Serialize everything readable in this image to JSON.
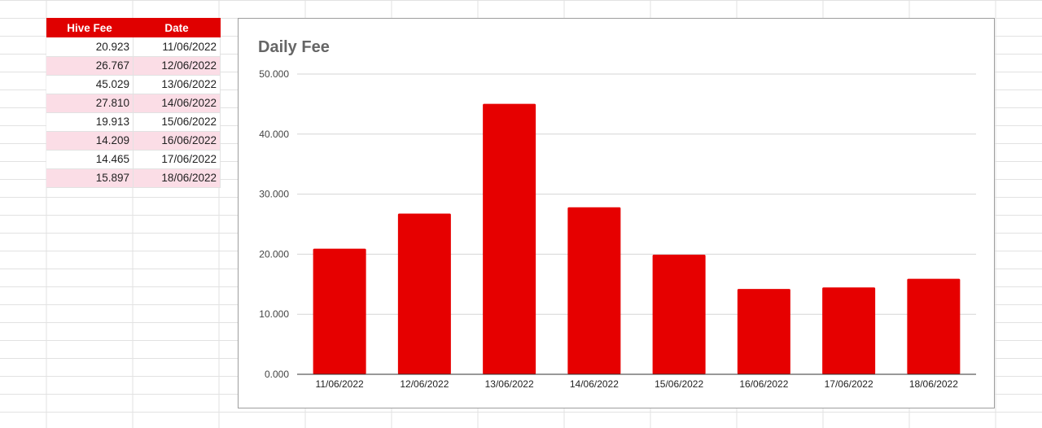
{
  "table": {
    "headers": [
      "Hive Fee",
      "Date"
    ],
    "rows": [
      {
        "fee": "20.923",
        "date": "11/06/2022"
      },
      {
        "fee": "26.767",
        "date": "12/06/2022"
      },
      {
        "fee": "45.029",
        "date": "13/06/2022"
      },
      {
        "fee": "27.810",
        "date": "14/06/2022"
      },
      {
        "fee": "19.913",
        "date": "15/06/2022"
      },
      {
        "fee": "14.209",
        "date": "16/06/2022"
      },
      {
        "fee": "14.465",
        "date": "17/06/2022"
      },
      {
        "fee": "15.897",
        "date": "18/06/2022"
      }
    ],
    "header_color": "#e00000",
    "alt_row_color": "#fbdde6"
  },
  "chart_data": {
    "type": "bar",
    "title": "Daily Fee",
    "xlabel": "",
    "ylabel": "",
    "categories": [
      "11/06/2022",
      "12/06/2022",
      "13/06/2022",
      "14/06/2022",
      "15/06/2022",
      "16/06/2022",
      "17/06/2022",
      "18/06/2022"
    ],
    "values": [
      20.923,
      26.767,
      45.029,
      27.81,
      19.913,
      14.209,
      14.465,
      15.897
    ],
    "ylim": [
      0,
      50
    ],
    "yticks": [
      0,
      10,
      20,
      30,
      40,
      50
    ],
    "ytick_labels": [
      "0.000",
      "10.000",
      "20.000",
      "30.000",
      "40.000",
      "50.000"
    ],
    "grid": true,
    "legend": "none",
    "bar_color": "#e60000"
  }
}
